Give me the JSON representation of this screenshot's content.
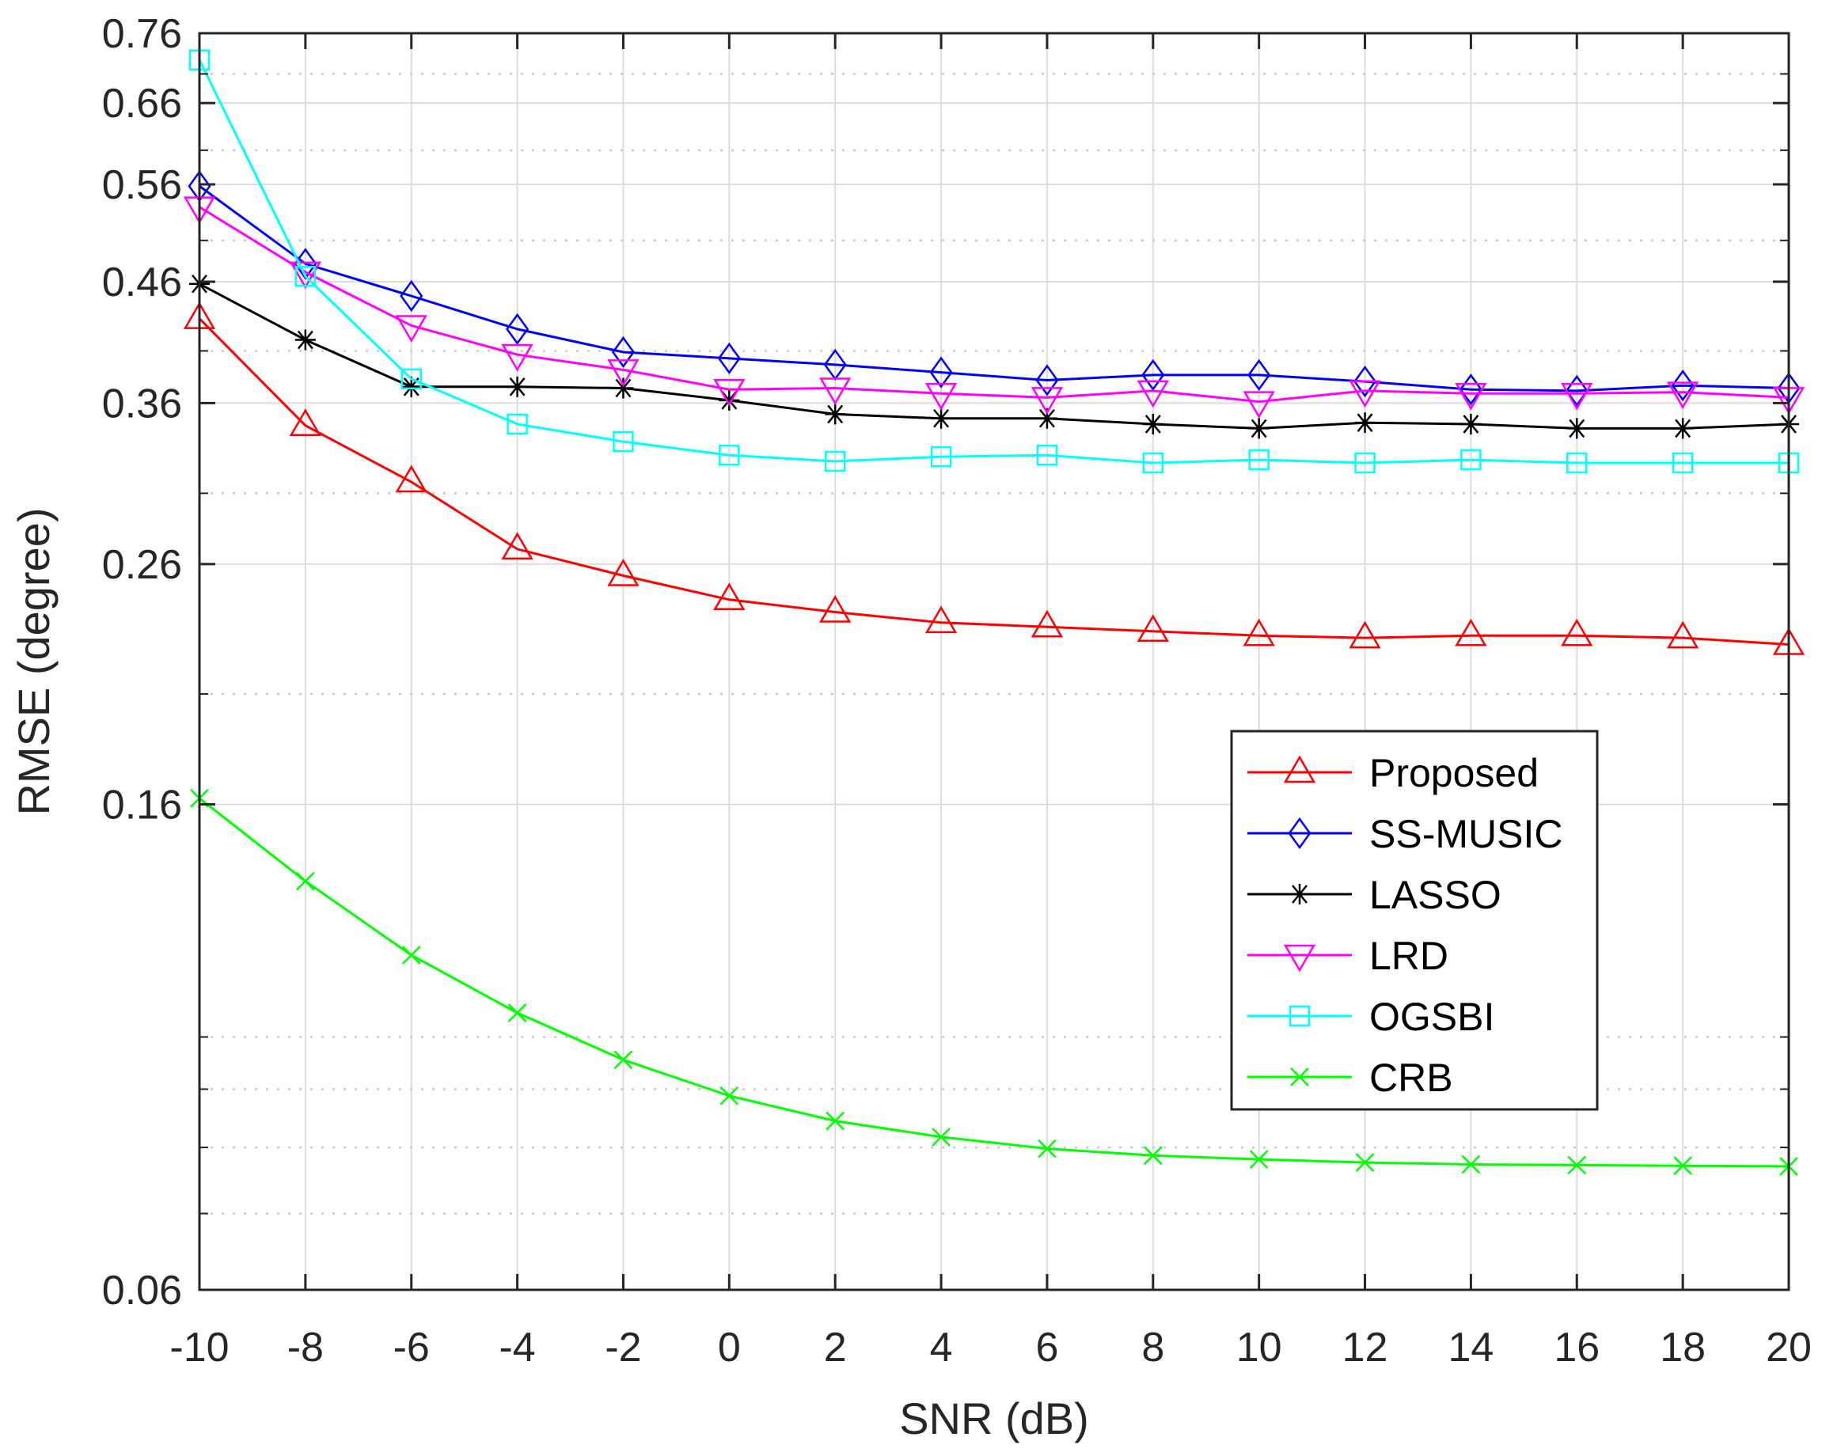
{
  "chart_data": {
    "type": "line",
    "title": "",
    "xlabel": "SNR (dB)",
    "ylabel": "RMSE (degree)",
    "yscale": "log",
    "xlim": [
      -10,
      20
    ],
    "ylim": [
      0.06,
      0.76
    ],
    "x": [
      -10,
      -8,
      -6,
      -4,
      -2,
      0,
      2,
      4,
      6,
      8,
      10,
      12,
      14,
      16,
      18,
      20
    ],
    "x_ticks": [
      "-10",
      "-8",
      "-6",
      "-4",
      "-2",
      "0",
      "2",
      "4",
      "6",
      "8",
      "10",
      "12",
      "14",
      "16",
      "18",
      "20"
    ],
    "y_ticks": [
      0.06,
      0.16,
      0.26,
      0.36,
      0.46,
      0.56,
      0.66,
      0.76
    ],
    "y_tick_labels": [
      "0.06",
      "0.16",
      "0.26",
      "0.36",
      "0.46",
      "0.56",
      "0.66",
      "0.76"
    ],
    "y_minor_grid": [
      0.07,
      0.08,
      0.09,
      0.1,
      0.2,
      0.3,
      0.4,
      0.5,
      0.6,
      0.7
    ],
    "grid": true,
    "legend_position": "center-right",
    "series": [
      {
        "name": "Proposed",
        "color": "#ff0000",
        "marker": "triangle-up",
        "values": [
          0.427,
          0.344,
          0.307,
          0.268,
          0.254,
          0.242,
          0.236,
          0.231,
          0.229,
          0.227,
          0.225,
          0.224,
          0.225,
          0.225,
          0.224,
          0.221
        ]
      },
      {
        "name": "SS-MUSIC",
        "color": "#0000ff",
        "marker": "diamond",
        "values": [
          0.558,
          0.477,
          0.447,
          0.418,
          0.399,
          0.394,
          0.389,
          0.383,
          0.377,
          0.381,
          0.381,
          0.376,
          0.37,
          0.369,
          0.373,
          0.371
        ]
      },
      {
        "name": "LASSO",
        "color": "#000000",
        "marker": "asterisk",
        "values": [
          0.458,
          0.409,
          0.372,
          0.372,
          0.371,
          0.362,
          0.352,
          0.349,
          0.349,
          0.345,
          0.342,
          0.346,
          0.345,
          0.342,
          0.342,
          0.345
        ]
      },
      {
        "name": "LRD",
        "color": "#ff00ff",
        "marker": "triangle-down",
        "values": [
          0.535,
          0.469,
          0.421,
          0.397,
          0.385,
          0.37,
          0.371,
          0.367,
          0.364,
          0.369,
          0.361,
          0.369,
          0.367,
          0.367,
          0.368,
          0.364
        ]
      },
      {
        "name": "OGSBI",
        "color": "#00ffff",
        "marker": "square",
        "values": [
          0.72,
          0.465,
          0.378,
          0.345,
          0.333,
          0.324,
          0.32,
          0.323,
          0.324,
          0.319,
          0.321,
          0.319,
          0.321,
          0.319,
          0.319,
          0.319
        ]
      },
      {
        "name": "CRB",
        "color": "#00ff00",
        "marker": "x",
        "values": [
          0.162,
          0.137,
          0.118,
          0.105,
          0.0955,
          0.0888,
          0.0844,
          0.0817,
          0.0798,
          0.0787,
          0.0781,
          0.0776,
          0.0773,
          0.0772,
          0.0771,
          0.077
        ]
      }
    ]
  }
}
